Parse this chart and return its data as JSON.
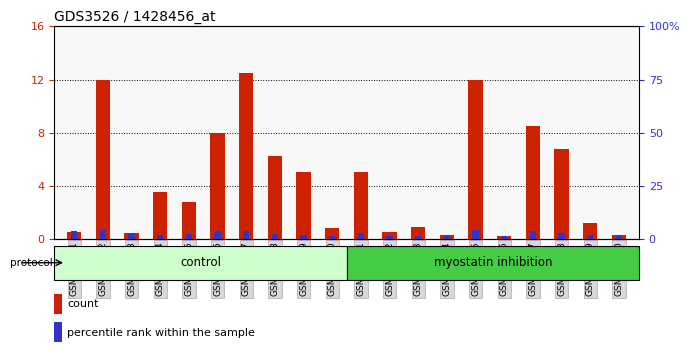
{
  "title": "GDS3526 / 1428456_at",
  "samples": [
    "GSM344631",
    "GSM344632",
    "GSM344633",
    "GSM344634",
    "GSM344635",
    "GSM344636",
    "GSM344637",
    "GSM344638",
    "GSM344639",
    "GSM344640",
    "GSM344641",
    "GSM344642",
    "GSM344643",
    "GSM344644",
    "GSM344645",
    "GSM344646",
    "GSM344647",
    "GSM344648",
    "GSM344649",
    "GSM344650"
  ],
  "counts": [
    0.5,
    12.0,
    0.4,
    3.5,
    2.8,
    8.0,
    12.5,
    6.2,
    5.0,
    0.8,
    5.0,
    0.5,
    0.9,
    0.3,
    12.0,
    0.2,
    8.5,
    6.8,
    1.2,
    0.3
  ],
  "percentile_ranks": [
    3.5,
    4.0,
    2.5,
    2.0,
    2.2,
    3.5,
    3.6,
    2.2,
    2.0,
    1.5,
    2.5,
    1.5,
    1.5,
    1.2,
    4.0,
    1.2,
    3.5,
    2.5,
    2.0,
    1.8
  ],
  "n_control": 10,
  "n_myostatin": 10,
  "ylim_left": [
    0,
    16
  ],
  "ylim_right": [
    0,
    100
  ],
  "yticks_left": [
    0,
    4,
    8,
    12,
    16
  ],
  "yticks_right": [
    0,
    25,
    50,
    75,
    100
  ],
  "bar_color_red": "#cc2200",
  "bar_color_blue": "#3333cc",
  "bg_plot": "#f8f8f8",
  "control_bg": "#ccffcc",
  "myostatin_bg": "#44cc44",
  "control_label": "control",
  "myostatin_label": "myostatin inhibition",
  "protocol_label": "protocol",
  "legend_count": "count",
  "legend_percentile": "percentile rank within the sample",
  "title_fontsize": 10,
  "bar_width": 0.5
}
